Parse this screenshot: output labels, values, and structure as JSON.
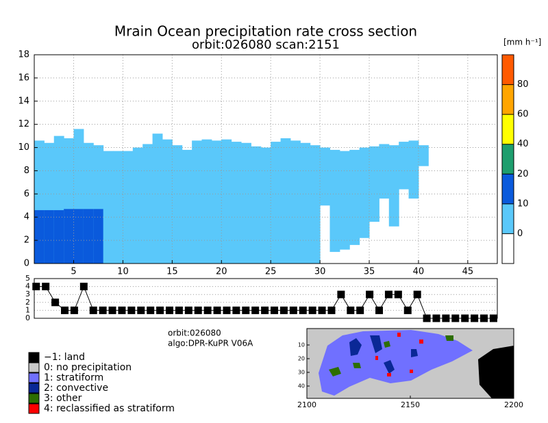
{
  "title": "Mrain Ocean precipitation rate cross section",
  "subtitle": "orbit:026080    scan:2151",
  "chart_data": [
    {
      "type": "profile",
      "xlim": [
        1,
        48
      ],
      "xticks": [
        5,
        10,
        15,
        20,
        25,
        30,
        35,
        40,
        45
      ],
      "ylim": [
        0,
        18
      ],
      "yticks": [
        0,
        2,
        4,
        6,
        8,
        10,
        12,
        14,
        16,
        18
      ],
      "grid": true,
      "x": [
        1,
        2,
        3,
        4,
        5,
        6,
        7,
        8,
        9,
        10,
        11,
        12,
        13,
        14,
        15,
        16,
        17,
        18,
        19,
        20,
        21,
        22,
        23,
        24,
        25,
        26,
        27,
        28,
        29,
        30,
        31,
        32,
        33,
        34,
        35,
        36,
        37,
        38,
        39,
        40
      ],
      "echo_top": [
        10.6,
        10.4,
        11,
        10.8,
        11.6,
        10.4,
        10.2,
        9.7,
        9.7,
        9.7,
        10,
        10.3,
        11.2,
        10.7,
        10.2,
        9.8,
        10.6,
        10.7,
        10.6,
        10.7,
        10.5,
        10.4,
        10.1,
        10,
        10.5,
        10.8,
        10.6,
        10.4,
        10.2,
        10,
        9.8,
        9.7,
        9.8,
        10,
        10.1,
        10.3,
        10.2,
        10.5,
        10.6,
        10.2
      ],
      "echo_base": [
        0,
        0,
        0,
        0,
        0,
        0,
        0,
        0,
        0,
        0,
        0,
        0,
        0,
        0,
        0,
        0,
        0,
        0,
        0,
        0,
        0,
        0,
        0,
        0,
        0,
        0,
        0,
        0,
        0,
        5,
        1,
        1.2,
        1.6,
        2.2,
        3.6,
        5.6,
        3.2,
        6.4,
        5.6,
        8.4
      ],
      "conv_top": [
        4.6,
        4.6,
        4.6,
        4.7,
        4.7,
        4.7,
        4.7,
        0,
        0,
        0,
        0,
        0,
        0,
        0,
        0,
        0,
        0,
        0,
        0,
        0,
        0,
        0,
        0,
        0,
        0,
        0,
        0,
        0,
        0,
        0,
        0,
        0,
        0,
        0,
        0,
        0,
        0,
        0,
        0,
        0
      ],
      "echo_color": "#5ac8fa",
      "conv_color": "#0a5adc",
      "colorbar": {
        "unit": "[mm h⁻¹]",
        "ticks": [
          0,
          10,
          20,
          40,
          60,
          80
        ],
        "colors": [
          "#ffffff",
          "#5ac8fa",
          "#0a5adc",
          "#1e9e6e",
          "#ffff00",
          "#ffa500",
          "#ff5a00"
        ]
      }
    },
    {
      "type": "line",
      "x": [
        1,
        2,
        3,
        4,
        5,
        6,
        7,
        8,
        9,
        10,
        11,
        12,
        13,
        14,
        15,
        16,
        17,
        18,
        19,
        20,
        21,
        22,
        23,
        24,
        25,
        26,
        27,
        28,
        29,
        30,
        31,
        32,
        33,
        34,
        35,
        36,
        37,
        38,
        39,
        40,
        41,
        42,
        43,
        44,
        45,
        46,
        47,
        48,
        49
      ],
      "values": [
        4,
        4,
        2,
        1,
        1,
        4,
        1,
        1,
        1,
        1,
        1,
        1,
        1,
        1,
        1,
        1,
        1,
        1,
        1,
        1,
        1,
        1,
        1,
        1,
        1,
        1,
        1,
        1,
        1,
        1,
        1,
        1,
        3,
        1,
        1,
        3,
        1,
        3,
        3,
        1,
        3,
        0,
        0,
        0,
        0,
        0,
        0,
        0,
        0
      ],
      "xlim": [
        0.8,
        49.4
      ],
      "ylim": [
        0,
        5
      ],
      "yticks": [
        0,
        1,
        2,
        3,
        4,
        5
      ],
      "color": "#000000"
    }
  ],
  "info": [
    "orbit:026080",
    "algo:DPR-KuPR V06A"
  ],
  "legend": [
    {
      "label": "−1: land",
      "color": "#000000"
    },
    {
      "label": "0: no precipitation",
      "color": "#c8c8c8"
    },
    {
      "label": "1: stratiform",
      "color": "#7070ff"
    },
    {
      "label": "2: convective",
      "color": "#0a2896"
    },
    {
      "label": "3: other",
      "color": "#2d6e00"
    },
    {
      "label": "4: reclassified as stratiform",
      "color": "#ff0000"
    }
  ],
  "map": {
    "xlim": [
      2100,
      2200
    ],
    "xticks": [
      2100,
      2150,
      2200
    ],
    "ylim": [
      -2,
      49
    ],
    "yticks": [
      10,
      20,
      30,
      40
    ]
  }
}
